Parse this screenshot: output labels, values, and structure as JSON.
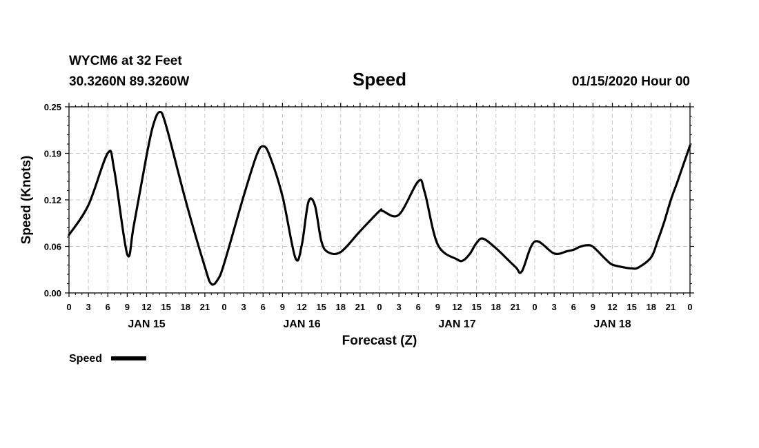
{
  "header": {
    "station": "WYCM6 at 32 Feet",
    "coords": "30.3260N 89.3260W",
    "title": "Speed",
    "timestamp": "01/15/2020 Hour 00"
  },
  "chart_data": {
    "type": "line",
    "title": "Speed",
    "xlabel": "Forecast (Z)",
    "ylabel": "Speed (Knots)",
    "ylim": [
      0,
      0.25
    ],
    "yticks": [
      "0.00",
      "0.06",
      "0.12",
      "0.19",
      "0.25"
    ],
    "xlim_hours": [
      0,
      96
    ],
    "xtick_labels": [
      "0",
      "3",
      "6",
      "9",
      "12",
      "15",
      "18",
      "21",
      "0",
      "3",
      "6",
      "9",
      "12",
      "15",
      "18",
      "21",
      "0",
      "3",
      "6",
      "9",
      "12",
      "15",
      "18",
      "21",
      "0",
      "3",
      "6",
      "9",
      "12",
      "15",
      "18",
      "21",
      "0"
    ],
    "day_labels": [
      {
        "label": "JAN 15",
        "hour": 12
      },
      {
        "label": "JAN 16",
        "hour": 36
      },
      {
        "label": "JAN 17",
        "hour": 60
      },
      {
        "label": "JAN 18",
        "hour": 84
      }
    ],
    "grid": true,
    "line_color": "#000000",
    "series": [
      {
        "name": "Speed",
        "x": [
          0,
          3,
          6,
          7,
          9,
          10,
          12,
          13,
          14,
          15,
          18,
          21,
          22,
          23,
          24,
          27,
          29,
          30,
          31,
          33,
          35,
          36,
          37,
          38,
          39,
          40,
          42,
          45,
          48,
          48.5,
          51,
          54,
          55,
          57,
          60,
          61,
          62,
          63,
          64,
          66,
          69,
          70,
          72,
          75,
          77,
          78,
          79,
          80,
          81,
          83,
          84,
          86,
          87,
          88,
          90,
          91,
          92,
          93,
          94,
          95,
          96
        ],
        "y": [
          0.078,
          0.118,
          0.188,
          0.165,
          0.052,
          0.09,
          0.185,
          0.225,
          0.243,
          0.225,
          0.125,
          0.035,
          0.012,
          0.018,
          0.04,
          0.13,
          0.185,
          0.197,
          0.185,
          0.13,
          0.047,
          0.065,
          0.122,
          0.118,
          0.07,
          0.055,
          0.055,
          0.083,
          0.11,
          0.11,
          0.105,
          0.15,
          0.135,
          0.065,
          0.045,
          0.044,
          0.053,
          0.067,
          0.073,
          0.06,
          0.035,
          0.029,
          0.069,
          0.053,
          0.056,
          0.058,
          0.062,
          0.064,
          0.062,
          0.045,
          0.038,
          0.034,
          0.033,
          0.034,
          0.048,
          0.07,
          0.095,
          0.124,
          0.148,
          0.173,
          0.198
        ]
      }
    ],
    "legend": [
      {
        "label": "Speed"
      }
    ],
    "legend_position": "bottom-left"
  }
}
